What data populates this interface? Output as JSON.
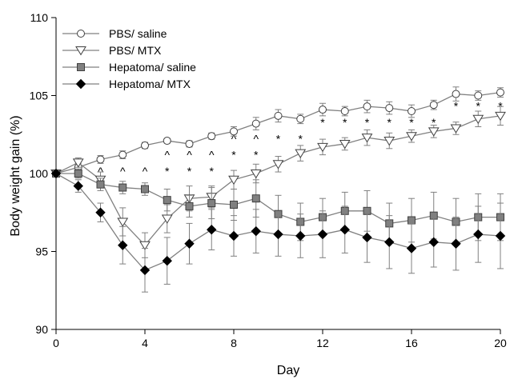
{
  "chart_data": {
    "type": "line",
    "title": "",
    "xlabel": "Day",
    "ylabel": "Body weight gain (%)",
    "xlim": [
      0,
      20
    ],
    "ylim": [
      90,
      110
    ],
    "xticks": [
      0,
      4,
      8,
      12,
      16,
      20
    ],
    "yticks": [
      90,
      95,
      100,
      105,
      110
    ],
    "grid": false,
    "legend_position": "top-left",
    "x": [
      0,
      1,
      2,
      3,
      4,
      5,
      6,
      7,
      8,
      9,
      10,
      11,
      12,
      13,
      14,
      15,
      16,
      17,
      18,
      19,
      20
    ],
    "series": [
      {
        "name": "PBS/ saline",
        "marker": "open-circle",
        "values": [
          100,
          100.4,
          100.9,
          101.2,
          101.8,
          102.1,
          101.9,
          102.4,
          102.7,
          103.2,
          103.7,
          103.5,
          104.1,
          104.0,
          104.3,
          104.2,
          104.0,
          104.4,
          105.1,
          105.0,
          105.2
        ],
        "errors": [
          0.1,
          0.25,
          0.25,
          0.25,
          0.2,
          0.15,
          0.2,
          0.2,
          0.3,
          0.4,
          0.4,
          0.3,
          0.4,
          0.3,
          0.4,
          0.4,
          0.4,
          0.3,
          0.45,
          0.3,
          0.3
        ]
      },
      {
        "name": "PBS/ MTX",
        "marker": "open-triangle-down",
        "values": [
          100,
          100.7,
          99.6,
          96.9,
          95.4,
          97.1,
          98.4,
          98.5,
          99.6,
          100.0,
          100.6,
          101.3,
          101.7,
          101.9,
          102.3,
          102.1,
          102.4,
          102.7,
          102.9,
          103.5,
          103.7
        ],
        "errors": [
          0.1,
          0.3,
          0.5,
          0.9,
          0.8,
          0.9,
          0.8,
          0.7,
          0.6,
          0.6,
          0.5,
          0.5,
          0.5,
          0.4,
          0.5,
          0.5,
          0.4,
          0.4,
          0.4,
          0.5,
          0.6
        ]
      },
      {
        "name": "Hepatoma/ saline",
        "marker": "filled-square",
        "values": [
          100,
          100.0,
          99.3,
          99.1,
          99.0,
          98.3,
          97.9,
          98.1,
          98.0,
          98.4,
          97.4,
          96.9,
          97.2,
          97.6,
          97.6,
          96.8,
          97.0,
          97.3,
          96.9,
          97.2,
          97.2
        ],
        "errors": [
          0.1,
          0.3,
          0.4,
          0.4,
          0.4,
          0.7,
          0.7,
          1.0,
          1.0,
          1.2,
          1.2,
          1.2,
          1.2,
          1.2,
          1.3,
          1.3,
          1.4,
          1.5,
          1.5,
          1.5,
          1.5
        ]
      },
      {
        "name": "Hepatoma/ MTX",
        "marker": "filled-diamond",
        "values": [
          100,
          99.2,
          97.5,
          95.4,
          93.8,
          94.4,
          95.5,
          96.4,
          96.0,
          96.3,
          96.1,
          96.0,
          96.1,
          96.4,
          95.9,
          95.6,
          95.2,
          95.6,
          95.5,
          96.1,
          96.0
        ],
        "errors": [
          0.1,
          0.4,
          0.6,
          1.2,
          1.4,
          1.5,
          1.3,
          1.3,
          1.3,
          1.4,
          1.4,
          1.4,
          1.5,
          1.5,
          1.6,
          1.7,
          1.6,
          1.6,
          1.7,
          1.8,
          2.1
        ]
      }
    ],
    "annotations": [
      {
        "text": "^",
        "x": 1,
        "level": 1
      },
      {
        "text": "*",
        "x": 1,
        "level": 0
      },
      {
        "text": "^",
        "x": 2,
        "level": 1
      },
      {
        "text": "*",
        "x": 2,
        "level": 0
      },
      {
        "text": "^",
        "x": 3,
        "level": 1
      },
      {
        "text": "^",
        "x": 4,
        "level": 1
      },
      {
        "text": "^",
        "x": 5,
        "level": 2
      },
      {
        "text": "*",
        "x": 5,
        "level": 1
      },
      {
        "text": "^",
        "x": 6,
        "level": 2
      },
      {
        "text": "*",
        "x": 6,
        "level": 1
      },
      {
        "text": "^",
        "x": 7,
        "level": 2
      },
      {
        "text": "*",
        "x": 7,
        "level": 1
      },
      {
        "text": "^",
        "x": 8,
        "level": 3
      },
      {
        "text": "*",
        "x": 8,
        "level": 2
      },
      {
        "text": "^",
        "x": 9,
        "level": 3
      },
      {
        "text": "*",
        "x": 9,
        "level": 2
      },
      {
        "text": "*",
        "x": 10,
        "level": 3
      },
      {
        "text": "*",
        "x": 11,
        "level": 3
      },
      {
        "text": "*",
        "x": 12,
        "level": 4
      },
      {
        "text": "*",
        "x": 13,
        "level": 4
      },
      {
        "text": "*",
        "x": 14,
        "level": 4
      },
      {
        "text": "*",
        "x": 15,
        "level": 4
      },
      {
        "text": "*",
        "x": 16,
        "level": 4
      },
      {
        "text": "*",
        "x": 17,
        "level": 4
      },
      {
        "text": "*",
        "x": 18,
        "level": 5
      },
      {
        "text": "*",
        "x": 19,
        "level": 5
      },
      {
        "text": "*",
        "x": 20,
        "level": 5
      }
    ]
  },
  "colors": {
    "axis": "#000000",
    "line": "#808080",
    "errorbar": "#808080",
    "open_marker_fill": "#ffffff",
    "open_marker_stroke": "#404040",
    "square_fill": "#808080",
    "square_stroke": "#404040",
    "diamond_fill": "#000000"
  }
}
